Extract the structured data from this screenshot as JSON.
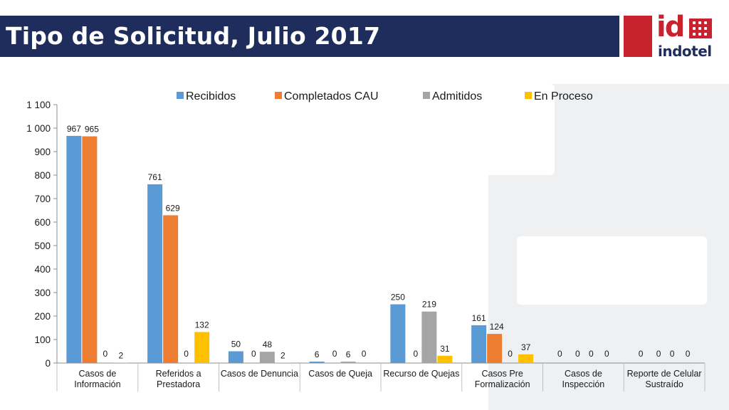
{
  "header": {
    "title": "Tipo de Solicitud, Julio 2017"
  },
  "logo": {
    "mark": "id",
    "name": "indotel"
  },
  "colors": {
    "title_bar": "#1f2d5c",
    "brand_red": "#c8222f",
    "series": [
      "#5b9bd5",
      "#ed7d31",
      "#a5a5a5",
      "#ffc000"
    ]
  },
  "chart_data": {
    "type": "bar",
    "title": "",
    "xlabel": "",
    "ylabel": "",
    "ylim": [
      0,
      1100
    ],
    "yticks": [
      0,
      100,
      200,
      300,
      400,
      500,
      600,
      700,
      800,
      900,
      1000,
      1100
    ],
    "ytick_labels": [
      "0",
      "100",
      "200",
      "300",
      "400",
      "500",
      "600",
      "700",
      "800",
      "900",
      "1 000",
      "1 100"
    ],
    "grid": false,
    "legend_position": "top",
    "categories": [
      [
        "Casos de",
        "Información"
      ],
      [
        "Referidos a",
        "Prestadora"
      ],
      [
        "Casos de Denuncia"
      ],
      [
        "Casos de Queja"
      ],
      [
        "Recurso de Quejas"
      ],
      [
        "Casos Pre",
        "Formalización"
      ],
      [
        "Casos de",
        "Inspección"
      ],
      [
        "Reporte de Celular",
        "Sustraído"
      ]
    ],
    "series": [
      {
        "name": "Recibidos",
        "values": [
          967,
          761,
          50,
          6,
          250,
          161,
          0,
          0
        ]
      },
      {
        "name": "Completados CAU",
        "values": [
          965,
          629,
          0,
          0,
          0,
          124,
          0,
          0
        ]
      },
      {
        "name": "Admitidos",
        "values": [
          0,
          0,
          48,
          6,
          219,
          0,
          0,
          0
        ]
      },
      {
        "name": "En Proceso",
        "values": [
          2,
          132,
          2,
          0,
          31,
          37,
          0,
          0
        ]
      }
    ]
  }
}
